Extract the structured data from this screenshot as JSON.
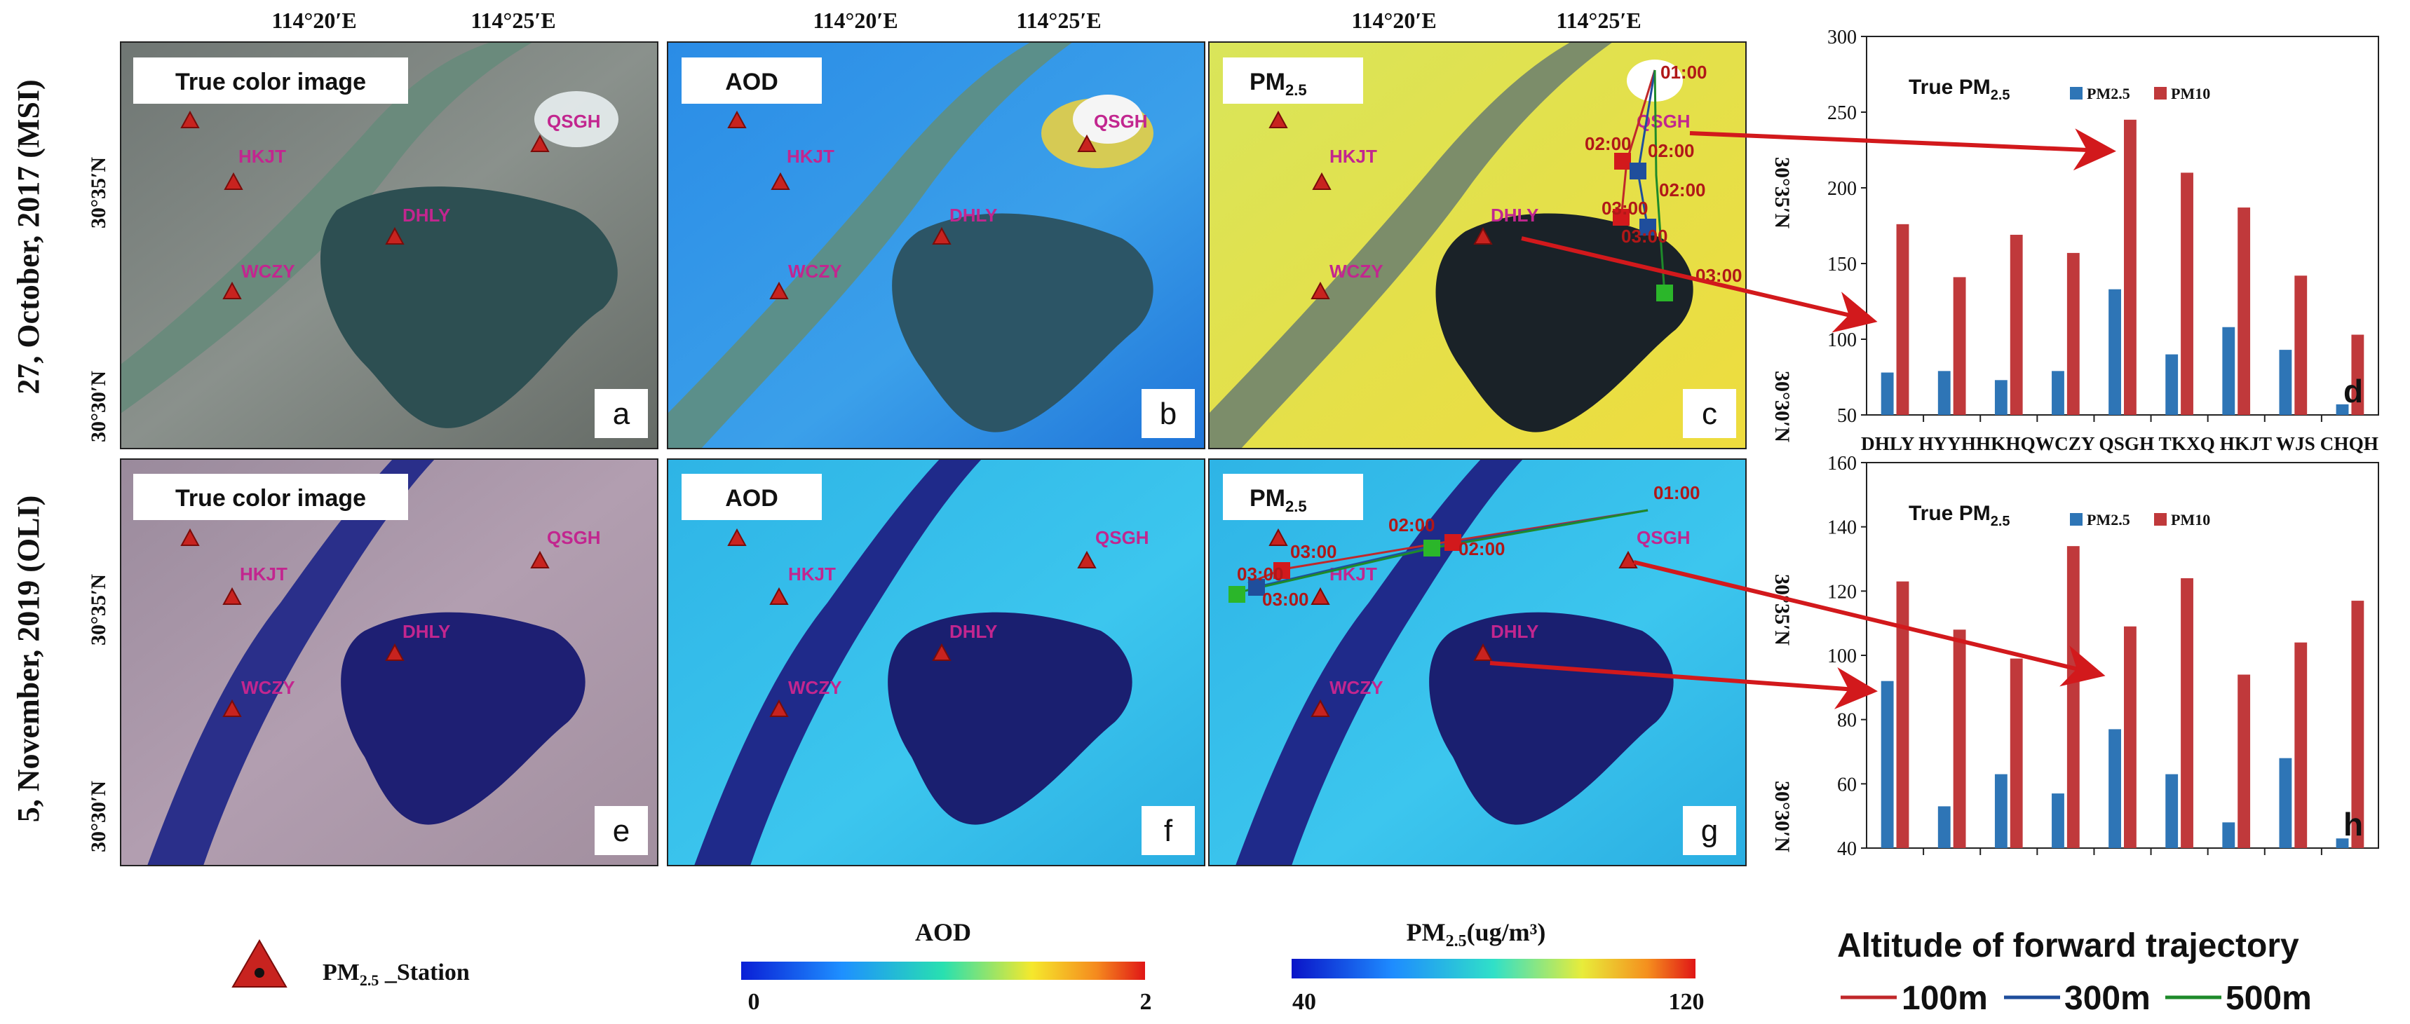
{
  "row_labels": {
    "top": "27, October, 2017  (MSI)",
    "bottom": "5, November, 2019 (OLI)"
  },
  "lon_ticks": [
    "114°20′E",
    "114°25′E"
  ],
  "lat_ticks": [
    "30°35′N",
    "30°30′N"
  ],
  "panels": [
    {
      "id": "a",
      "label": "True color image",
      "letter": "a"
    },
    {
      "id": "b",
      "label": "AOD",
      "letter": "b"
    },
    {
      "id": "c",
      "label": "PM",
      "label_sub": "2.5",
      "letter": "c"
    },
    {
      "id": "e",
      "label": "True color image",
      "letter": "e"
    },
    {
      "id": "f",
      "label": "AOD",
      "letter": "f"
    },
    {
      "id": "g",
      "label": "PM",
      "label_sub": "2.5",
      "letter": "g"
    }
  ],
  "stations": [
    "QSGH",
    "HKJT",
    "DHLY",
    "WCZY"
  ],
  "trajectory_times": {
    "top": [
      "01:00",
      "02:00",
      "02:00",
      "02:00",
      "03:00",
      "03:00",
      "03:00"
    ],
    "bottom": [
      "01:00",
      "02:00",
      "02:00",
      "03:00",
      "03:00",
      "03:00"
    ]
  },
  "legend": {
    "station": "PM",
    "station_sub": "2.5",
    "station_suffix": " _Station",
    "aod_title": "AOD",
    "aod_min": "0",
    "aod_max": "2",
    "pm_title": "PM",
    "pm_sub": "2.5",
    "pm_unit": "(ug/m³)",
    "pm_min": "40",
    "pm_max": "120",
    "traj_title": "Altitude of forward trajectory",
    "traj_items": [
      {
        "label": "100m",
        "color": "#c0282a"
      },
      {
        "label": "300m",
        "color": "#1f4e9c"
      },
      {
        "label": "500m",
        "color": "#1e8a2a"
      }
    ]
  },
  "colors": {
    "pm25": "#2e75b6",
    "pm10": "#c0393b",
    "arrow": "#d2191c",
    "station": "#c8231f",
    "station_label": "#c2268f"
  },
  "chart_data": [
    {
      "type": "bar",
      "title": "True PM",
      "title_sub": "2.5",
      "panel_letter": "d",
      "categories": [
        "DHLY",
        "HYYH",
        "HKHQ",
        "WCZY",
        "QSGH",
        "TKXQ",
        "HKJT",
        "WJS",
        "CHQH"
      ],
      "category_axis_text": "DHLY HYYHHKHQWCZY QSGH TKXQ HKJT WJS CHQH",
      "ylim": [
        50,
        300
      ],
      "yticks": [
        50,
        100,
        150,
        200,
        250,
        300
      ],
      "series": [
        {
          "name": "PM2.5",
          "values": [
            78,
            79,
            73,
            79,
            133,
            90,
            108,
            93,
            57
          ]
        },
        {
          "name": "PM10",
          "values": [
            176,
            141,
            169,
            157,
            245,
            210,
            187,
            142,
            103
          ]
        }
      ]
    },
    {
      "type": "bar",
      "title": "True PM",
      "title_sub": "2.5",
      "panel_letter": "h",
      "categories": [
        "DHLY",
        "HYYH",
        "HKHQ",
        "WCZY",
        "QSGH",
        "TKXQ",
        "HKJT",
        "WJS",
        "CHQH"
      ],
      "ylim": [
        40,
        160
      ],
      "yticks": [
        40,
        60,
        80,
        100,
        120,
        140,
        160
      ],
      "series": [
        {
          "name": "PM2.5",
          "values": [
            92,
            53,
            63,
            57,
            77,
            63,
            48,
            68,
            43
          ]
        },
        {
          "name": "PM10",
          "values": [
            123,
            108,
            99,
            134,
            109,
            124,
            94,
            104,
            117
          ]
        }
      ]
    }
  ]
}
